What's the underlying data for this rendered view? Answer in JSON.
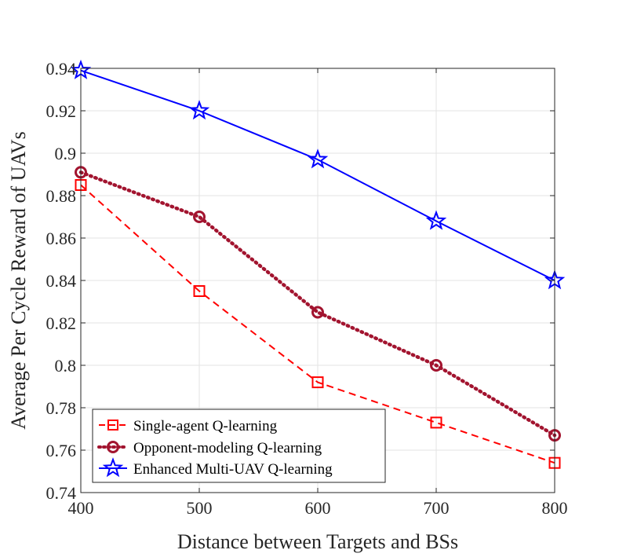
{
  "chart_data": {
    "type": "line",
    "title": "",
    "xlabel": "Distance between Targets and BSs",
    "ylabel": "Average Per Cycle Reward of UAVs",
    "x": [
      400,
      500,
      600,
      700,
      800
    ],
    "xlim": [
      400,
      800
    ],
    "ylim": [
      0.74,
      0.94
    ],
    "xticks": [
      400,
      500,
      600,
      700,
      800
    ],
    "xtick_labels": [
      "400",
      "500",
      "600",
      "700",
      "800"
    ],
    "yticks": [
      0.74,
      0.76,
      0.78,
      0.8,
      0.82,
      0.84,
      0.86,
      0.88,
      0.9,
      0.92,
      0.94
    ],
    "ytick_labels": [
      "0.74",
      "0.76",
      "0.78",
      "0.8",
      "0.82",
      "0.84",
      "0.86",
      "0.88",
      "0.9",
      "0.92",
      "0.94"
    ],
    "grid": true,
    "legend_position": "bottom-left",
    "series": [
      {
        "name": "Single-agent Q-learning",
        "values": [
          0.885,
          0.835,
          0.792,
          0.773,
          0.754
        ],
        "color": "#ff0000",
        "line_style": "dashed",
        "marker": "square"
      },
      {
        "name": "Opponent-modeling Q-learning",
        "values": [
          0.891,
          0.87,
          0.825,
          0.8,
          0.767
        ],
        "color": "#a2142f",
        "line_style": "dotted",
        "marker": "circle"
      },
      {
        "name": "Enhanced Multi-UAV Q-learning",
        "values": [
          0.939,
          0.92,
          0.897,
          0.868,
          0.84
        ],
        "color": "#0000ff",
        "line_style": "solid",
        "marker": "star"
      }
    ]
  }
}
